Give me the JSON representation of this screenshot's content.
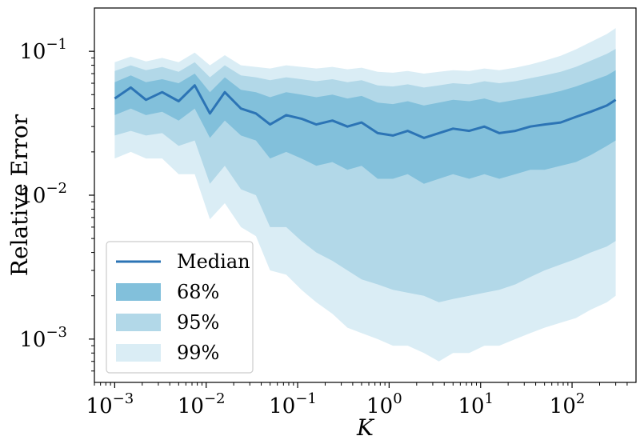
{
  "chart_data": {
    "type": "area",
    "title": "",
    "xlabel": "K",
    "ylabel": "Relative Error",
    "xscale": "log",
    "yscale": "log",
    "xlim": [
      0.0006,
      500
    ],
    "ylim": [
      0.0005,
      0.2
    ],
    "x_ticks": [
      {
        "value": 0.001,
        "label": "10",
        "exp": "−3"
      },
      {
        "value": 0.01,
        "label": "10",
        "exp": "−2"
      },
      {
        "value": 0.1,
        "label": "10",
        "exp": "−1"
      },
      {
        "value": 1,
        "label": "10",
        "exp": "0"
      },
      {
        "value": 10,
        "label": "10",
        "exp": "1"
      },
      {
        "value": 100,
        "label": "10",
        "exp": "2"
      }
    ],
    "y_ticks": [
      {
        "value": 0.001,
        "label": "10",
        "exp": "−3"
      },
      {
        "value": 0.01,
        "label": "10",
        "exp": "−2"
      },
      {
        "value": 0.1,
        "label": "10",
        "exp": "−1"
      }
    ],
    "grid": false,
    "legend_position": "lower-left",
    "colors": {
      "median": "#2c74b5",
      "band68": "#82c0db",
      "band95": "#b2d8e8",
      "band99": "#daedf5"
    },
    "x": [
      0.001,
      0.0015,
      0.0022,
      0.0033,
      0.005,
      0.0075,
      0.011,
      0.016,
      0.024,
      0.035,
      0.05,
      0.075,
      0.11,
      0.16,
      0.24,
      0.35,
      0.5,
      0.75,
      1.1,
      1.6,
      2.4,
      3.5,
      5,
      7.5,
      11,
      16,
      24,
      35,
      50,
      75,
      110,
      160,
      240,
      300
    ],
    "series": [
      {
        "name": "Median",
        "kind": "line",
        "values": [
          0.047,
          0.056,
          0.046,
          0.052,
          0.045,
          0.058,
          0.037,
          0.052,
          0.04,
          0.037,
          0.031,
          0.036,
          0.034,
          0.031,
          0.033,
          0.03,
          0.032,
          0.027,
          0.026,
          0.028,
          0.025,
          0.027,
          0.029,
          0.028,
          0.03,
          0.027,
          0.028,
          0.03,
          0.031,
          0.032,
          0.035,
          0.038,
          0.042,
          0.046
        ]
      },
      {
        "name": "68%",
        "kind": "band",
        "lower": [
          0.036,
          0.04,
          0.036,
          0.038,
          0.033,
          0.04,
          0.025,
          0.033,
          0.026,
          0.024,
          0.018,
          0.02,
          0.018,
          0.016,
          0.017,
          0.015,
          0.016,
          0.013,
          0.013,
          0.014,
          0.012,
          0.013,
          0.014,
          0.013,
          0.014,
          0.013,
          0.014,
          0.015,
          0.015,
          0.016,
          0.017,
          0.019,
          0.022,
          0.024
        ],
        "upper": [
          0.061,
          0.068,
          0.061,
          0.064,
          0.06,
          0.07,
          0.052,
          0.066,
          0.054,
          0.052,
          0.048,
          0.052,
          0.05,
          0.048,
          0.05,
          0.047,
          0.049,
          0.044,
          0.043,
          0.045,
          0.042,
          0.044,
          0.046,
          0.045,
          0.047,
          0.044,
          0.046,
          0.048,
          0.05,
          0.053,
          0.057,
          0.062,
          0.068,
          0.074
        ]
      },
      {
        "name": "95%",
        "kind": "band",
        "lower": [
          0.026,
          0.028,
          0.026,
          0.027,
          0.022,
          0.024,
          0.012,
          0.016,
          0.011,
          0.01,
          0.006,
          0.006,
          0.0048,
          0.004,
          0.0035,
          0.003,
          0.0026,
          0.0024,
          0.0022,
          0.0021,
          0.002,
          0.0018,
          0.0019,
          0.002,
          0.0021,
          0.0022,
          0.0024,
          0.0027,
          0.003,
          0.0033,
          0.0036,
          0.004,
          0.0044,
          0.0048
        ],
        "upper": [
          0.073,
          0.08,
          0.074,
          0.078,
          0.072,
          0.084,
          0.066,
          0.08,
          0.068,
          0.066,
          0.063,
          0.066,
          0.064,
          0.062,
          0.064,
          0.061,
          0.063,
          0.058,
          0.057,
          0.059,
          0.056,
          0.058,
          0.06,
          0.059,
          0.062,
          0.06,
          0.062,
          0.065,
          0.068,
          0.072,
          0.078,
          0.086,
          0.096,
          0.104
        ]
      },
      {
        "name": "99%",
        "kind": "band",
        "lower": [
          0.018,
          0.02,
          0.018,
          0.018,
          0.014,
          0.014,
          0.0068,
          0.0088,
          0.006,
          0.0052,
          0.003,
          0.0028,
          0.0022,
          0.0018,
          0.0015,
          0.0012,
          0.0011,
          0.001,
          0.0009,
          0.0009,
          0.0008,
          0.0007,
          0.0008,
          0.0008,
          0.0009,
          0.0009,
          0.001,
          0.0011,
          0.0012,
          0.0013,
          0.0014,
          0.0016,
          0.0018,
          0.002
        ],
        "upper": [
          0.084,
          0.092,
          0.085,
          0.09,
          0.084,
          0.098,
          0.08,
          0.094,
          0.08,
          0.078,
          0.076,
          0.08,
          0.078,
          0.076,
          0.078,
          0.075,
          0.077,
          0.072,
          0.071,
          0.073,
          0.07,
          0.072,
          0.074,
          0.073,
          0.076,
          0.074,
          0.077,
          0.081,
          0.086,
          0.093,
          0.103,
          0.116,
          0.132,
          0.145
        ]
      }
    ],
    "legend": [
      {
        "label": "Median",
        "swatch": "line",
        "color": "#2c74b5"
      },
      {
        "label": "68%",
        "swatch": "patch",
        "color": "#82c0db"
      },
      {
        "label": "95%",
        "swatch": "patch",
        "color": "#b2d8e8"
      },
      {
        "label": "99%",
        "swatch": "patch",
        "color": "#daedf5"
      }
    ]
  }
}
